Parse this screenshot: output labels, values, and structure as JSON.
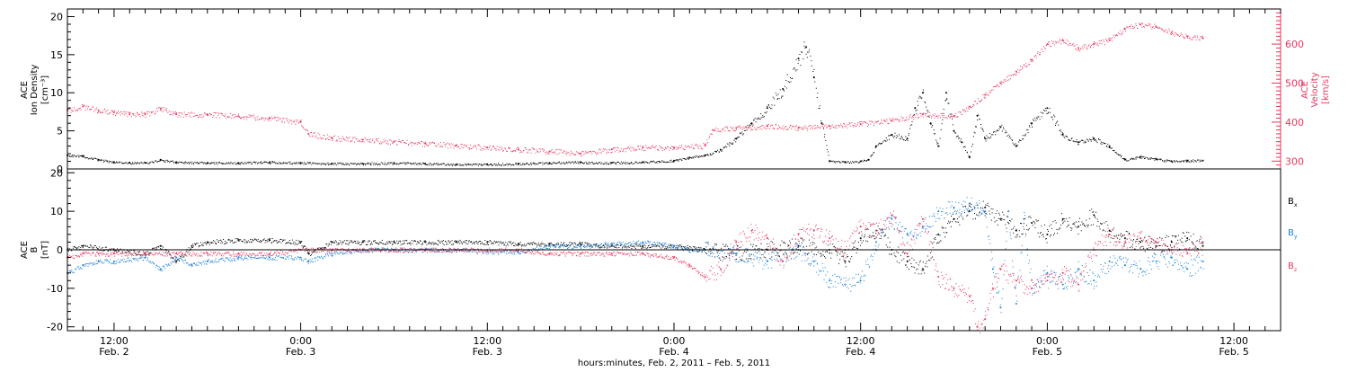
{
  "colors": {
    "black": "#000000",
    "pink": "#e8365e",
    "blue": "#1a7fd6"
  },
  "xaxis": {
    "label": "hours:minutes, Feb. 2, 2011 – Feb. 5, 2011",
    "range_hours": [
      9,
      87
    ],
    "ticks": [
      {
        "hour": 12,
        "top": "12:00",
        "bottom": "Feb. 2"
      },
      {
        "hour": 24,
        "top": "0:00",
        "bottom": "Feb. 3"
      },
      {
        "hour": 36,
        "top": "12:00",
        "bottom": "Feb. 3"
      },
      {
        "hour": 48,
        "top": "0:00",
        "bottom": "Feb. 4"
      },
      {
        "hour": 60,
        "top": "12:00",
        "bottom": "Feb. 4"
      },
      {
        "hour": 72,
        "top": "0:00",
        "bottom": "Feb. 5"
      },
      {
        "hour": 84,
        "top": "12:00",
        "bottom": "Feb. 5"
      }
    ]
  },
  "top_panel": {
    "left_ylabel": [
      "ACE",
      "Ion Density",
      "[cm⁻³]"
    ],
    "right_ylabel": [
      "ACE",
      "Velocity",
      "[km/s]"
    ]
  },
  "bottom_panel": {
    "ylabel": [
      "ACE",
      "B",
      "[nT]"
    ],
    "legend": [
      {
        "label": "B",
        "sub": "x",
        "color": "#000000"
      },
      {
        "label": "B",
        "sub": "y",
        "color": "#1a7fd6"
      },
      {
        "label": "B",
        "sub": "z",
        "color": "#e8365e"
      }
    ]
  },
  "chart_data": [
    {
      "type": "scatter",
      "panel": "top",
      "ylim_left": [
        0,
        21
      ],
      "ylim_right": [
        280,
        690
      ],
      "yticks_left": [
        0,
        5,
        10,
        15,
        20
      ],
      "yticks_right": [
        300,
        400,
        500,
        600
      ],
      "series": [
        {
          "name": "Ion Density",
          "axis": "left",
          "color": "#000000",
          "x": [
            9,
            10,
            11,
            12,
            13,
            14,
            15,
            16,
            18,
            20,
            22,
            24,
            26,
            28,
            30,
            32,
            34,
            36,
            38,
            40,
            42,
            44,
            46,
            48,
            49,
            50,
            51,
            52,
            53,
            54,
            55,
            56,
            56.5,
            57,
            57.5,
            58,
            59,
            60,
            60.5,
            61,
            62,
            63,
            63.5,
            64,
            64.5,
            65,
            65.5,
            66,
            66.5,
            67,
            67.5,
            68,
            69,
            70,
            71,
            72,
            73,
            74,
            75,
            76,
            77,
            78,
            79,
            80,
            81,
            82
          ],
          "y": [
            1.8,
            1.7,
            1.2,
            0.9,
            0.8,
            0.8,
            1.2,
            0.9,
            0.8,
            0.8,
            0.9,
            0.8,
            0.7,
            0.7,
            0.8,
            0.7,
            0.6,
            0.6,
            0.7,
            0.8,
            0.9,
            0.8,
            0.9,
            1.1,
            1.5,
            1.8,
            2.5,
            4.0,
            6.0,
            8.0,
            10.5,
            14.5,
            16.0,
            12.0,
            6.0,
            1.0,
            0.9,
            1.0,
            1.2,
            3.0,
            4.5,
            4.0,
            8.0,
            10.0,
            6.0,
            3.0,
            10.0,
            5.0,
            3.5,
            1.5,
            7.0,
            4.0,
            5.5,
            3.0,
            6.0,
            8.0,
            4.5,
            3.5,
            4.0,
            3.0,
            1.2,
            1.6,
            1.3,
            1.0,
            1.1,
            1.1
          ]
        },
        {
          "name": "Velocity",
          "axis": "right",
          "color": "#e8365e",
          "x": [
            9,
            10,
            11,
            12,
            13,
            14,
            15,
            16,
            18,
            20,
            22,
            24,
            24.5,
            26,
            28,
            30,
            32,
            34,
            36,
            38,
            40,
            42,
            44,
            46,
            48,
            50,
            50.5,
            52,
            54,
            56,
            58,
            60,
            62,
            64,
            66,
            67,
            68,
            69,
            70,
            71,
            72,
            73,
            74,
            75,
            76,
            77,
            78,
            79,
            80,
            81,
            82
          ],
          "y": [
            430,
            440,
            430,
            425,
            420,
            420,
            435,
            420,
            420,
            415,
            410,
            400,
            370,
            360,
            355,
            350,
            345,
            340,
            335,
            330,
            325,
            320,
            330,
            335,
            335,
            340,
            380,
            385,
            390,
            385,
            390,
            395,
            405,
            420,
            415,
            440,
            470,
            500,
            530,
            560,
            600,
            610,
            590,
            600,
            610,
            640,
            650,
            645,
            630,
            620,
            615
          ]
        }
      ]
    },
    {
      "type": "scatter",
      "panel": "bottom",
      "ylim": [
        -21,
        21
      ],
      "yticks": [
        -20,
        -10,
        0,
        10,
        20
      ],
      "zero_line": true,
      "series": [
        {
          "name": "Bx",
          "color": "#000000",
          "x": [
            9,
            10,
            12,
            14,
            15,
            16,
            17,
            18,
            20,
            22,
            24,
            24.5,
            26,
            28,
            30,
            32,
            34,
            36,
            38,
            40,
            42,
            44,
            46,
            48,
            50,
            52,
            54,
            56,
            58,
            59,
            60,
            61,
            62,
            63,
            64,
            65,
            66,
            67,
            68,
            69,
            70,
            71,
            72,
            73,
            74,
            75,
            76,
            77,
            78,
            79,
            80,
            81,
            82
          ],
          "y": [
            0,
            1,
            0,
            -1,
            1,
            -3,
            1,
            2,
            2.5,
            2.5,
            2,
            -1,
            2,
            2,
            2,
            2,
            2,
            2,
            1.5,
            1.5,
            1.5,
            1,
            1,
            1,
            0,
            -1,
            0,
            1,
            0,
            -3,
            3,
            5,
            0,
            -3,
            -5,
            4,
            8,
            10,
            11,
            8,
            5,
            7,
            4,
            8,
            6,
            9,
            5,
            3,
            2,
            1,
            2,
            3,
            1
          ]
        },
        {
          "name": "By",
          "color": "#1a7fd6",
          "x": [
            9,
            10,
            11,
            12,
            14,
            15,
            16,
            17,
            18,
            20,
            22,
            24,
            24.5,
            26,
            28,
            30,
            32,
            34,
            36,
            38,
            40,
            42,
            44,
            46,
            48,
            49,
            50,
            52,
            54,
            56,
            57,
            58,
            59,
            60,
            61,
            62,
            63,
            64,
            65,
            66,
            67,
            68,
            68.5,
            69,
            69.5,
            70,
            70.5,
            71,
            72,
            73,
            74,
            75,
            76,
            77,
            78,
            79,
            80,
            81,
            82
          ],
          "y": [
            -6,
            -4,
            -3,
            -3,
            -2,
            -5,
            -2,
            -4,
            -3,
            -2,
            -2,
            -2,
            -3,
            -1,
            0,
            0,
            0,
            0,
            -0.5,
            -0.5,
            1,
            1,
            1.5,
            2,
            1,
            0,
            0,
            -1,
            -3,
            0,
            -3,
            -8,
            -9,
            -8,
            2,
            8,
            4,
            6,
            10,
            11,
            12,
            10,
            -5,
            -15,
            10,
            -14,
            8,
            -10,
            -6,
            -9,
            -5,
            -8,
            -3,
            -4,
            -5,
            -3,
            -2,
            -5,
            -3
          ]
        },
        {
          "name": "Bz",
          "color": "#e8365e",
          "x": [
            9,
            10,
            11,
            12,
            14,
            16,
            18,
            20,
            22,
            24,
            26,
            28,
            30,
            32,
            34,
            36,
            38,
            40,
            42,
            44,
            46,
            48,
            49,
            50,
            51,
            52,
            53,
            54,
            55,
            56,
            57,
            58,
            59,
            60,
            61,
            62,
            63,
            64,
            65,
            66,
            67,
            67.5,
            68,
            68.5,
            69,
            70,
            71,
            72,
            73,
            74,
            75,
            76,
            77,
            78,
            79,
            80,
            81,
            82
          ],
          "y": [
            -2,
            -1,
            -1,
            -1,
            -1,
            -1,
            -1,
            -1,
            -1,
            0,
            0,
            0,
            0,
            0,
            0,
            0,
            0,
            -1,
            -1,
            -1,
            -1,
            -2,
            -4,
            -7,
            -5,
            2,
            5,
            3,
            -3,
            4,
            5,
            3,
            0,
            6,
            5,
            9,
            -1,
            8,
            -7,
            -10,
            -12,
            -20,
            -18,
            -10,
            -5,
            -8,
            -10,
            -8,
            -6,
            -9,
            0,
            4,
            2,
            3,
            2,
            0,
            -1,
            2
          ]
        }
      ]
    }
  ]
}
